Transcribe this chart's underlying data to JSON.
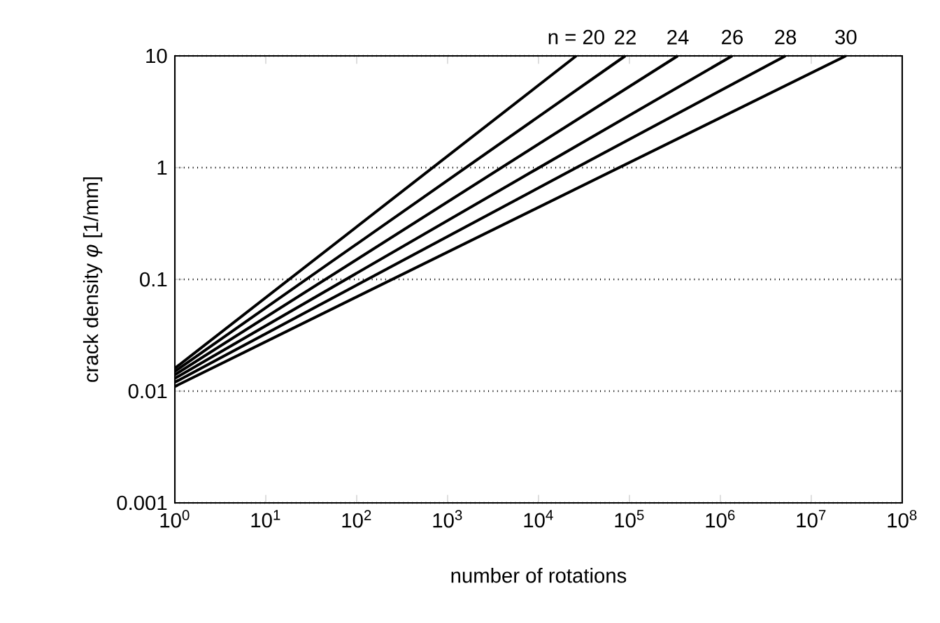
{
  "chart_data": {
    "type": "line",
    "xlabel": "number of rotations",
    "ylabel": "crack density *φ* [1/mm]",
    "log": "xy",
    "grid": "y",
    "xlim": [
      1,
      100000000
    ],
    "ylim": [
      0.001,
      10
    ],
    "xticks": [
      {
        "value": 1,
        "label": "10$^{0}$"
      },
      {
        "value": 10,
        "label": "10$^{1}$"
      },
      {
        "value": 100,
        "label": "10$^{2}$"
      },
      {
        "value": 1000,
        "label": "10$^{3}$"
      },
      {
        "value": 10000,
        "label": "10$^{4}$"
      },
      {
        "value": 100000,
        "label": "10$^{5}$"
      },
      {
        "value": 1000000,
        "label": "10$^{6}$"
      },
      {
        "value": 10000000,
        "label": "10$^{7}$"
      },
      {
        "value": 100000000,
        "label": "10$^{8}$"
      }
    ],
    "yticks": [
      0.001,
      0.01,
      0.1,
      1,
      10
    ],
    "series": [
      {
        "name": "n = 20",
        "color": "#000000",
        "x": [
          1,
          26000
        ],
        "values": [
          0.016,
          10
        ]
      },
      {
        "name": "22",
        "color": "#000000",
        "x": [
          1,
          90000
        ],
        "values": [
          0.015,
          10
        ]
      },
      {
        "name": "24",
        "color": "#000000",
        "x": [
          1,
          340000
        ],
        "values": [
          0.014,
          10
        ]
      },
      {
        "name": "26",
        "color": "#000000",
        "x": [
          1,
          1350000
        ],
        "values": [
          0.013,
          10
        ]
      },
      {
        "name": "28",
        "color": "#000000",
        "x": [
          1,
          5200000
        ],
        "values": [
          0.012,
          10
        ]
      },
      {
        "name": "30",
        "color": "#000000",
        "x": [
          1,
          24000000
        ],
        "values": [
          0.011,
          10
        ]
      }
    ]
  }
}
